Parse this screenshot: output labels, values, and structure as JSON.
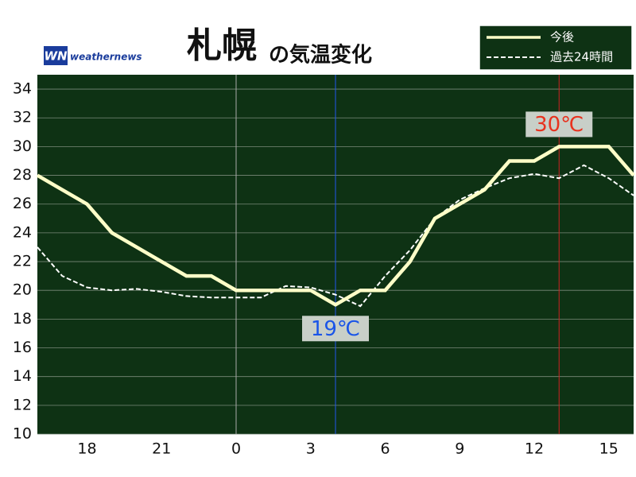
{
  "chart_data": {
    "type": "line",
    "title": "札幌",
    "subtitle": "の気温変化",
    "brand": "weathernews",
    "x": [
      16,
      17,
      18,
      19,
      20,
      21,
      22,
      23,
      24,
      25,
      26,
      27,
      28,
      29,
      30,
      31,
      32,
      33,
      34,
      35,
      36,
      37,
      38,
      39,
      40
    ],
    "series": [
      {
        "name": "今後",
        "color": "#ffffc8",
        "dash": false,
        "values": [
          28,
          27,
          26,
          24,
          23,
          22,
          21,
          21,
          20,
          20,
          20,
          20,
          19,
          20,
          20,
          22,
          25,
          26,
          27,
          29,
          29,
          30,
          30,
          30,
          28
        ]
      },
      {
        "name": "過去24時間",
        "color": "#ffffff",
        "dash": true,
        "values": [
          23,
          21,
          20.2,
          20,
          20.1,
          19.9,
          19.6,
          19.5,
          19.5,
          19.5,
          20.3,
          20.2,
          19.7,
          18.9,
          21,
          22.8,
          25,
          26.3,
          27.1,
          27.8,
          28.1,
          27.8,
          28.7,
          27.8,
          26.6
        ]
      }
    ],
    "xlim": [
      16,
      40
    ],
    "xticks": [
      18,
      21,
      {
        "value": 24,
        "label": "0"
      },
      {
        "value": 27,
        "label": "3"
      },
      {
        "value": 30,
        "label": "6"
      },
      {
        "value": 33,
        "label": "9"
      },
      {
        "value": 36,
        "label": "12"
      },
      {
        "value": 39,
        "label": "15"
      }
    ],
    "ylim": [
      10,
      35
    ],
    "yticks": [
      10,
      12,
      14,
      16,
      18,
      20,
      22,
      24,
      26,
      28,
      30,
      32,
      34
    ],
    "vlines": [
      {
        "value": 24,
        "color": "#aaaaaa"
      },
      {
        "value": 28,
        "color": "#2255ee"
      },
      {
        "value": 37,
        "color": "#cc2222"
      }
    ],
    "annotations": [
      {
        "text": "30℃",
        "color": "#e8321e"
      },
      {
        "text": "19℃",
        "color": "#1a55e8"
      }
    ],
    "grid": true,
    "background": "#0e3214"
  }
}
